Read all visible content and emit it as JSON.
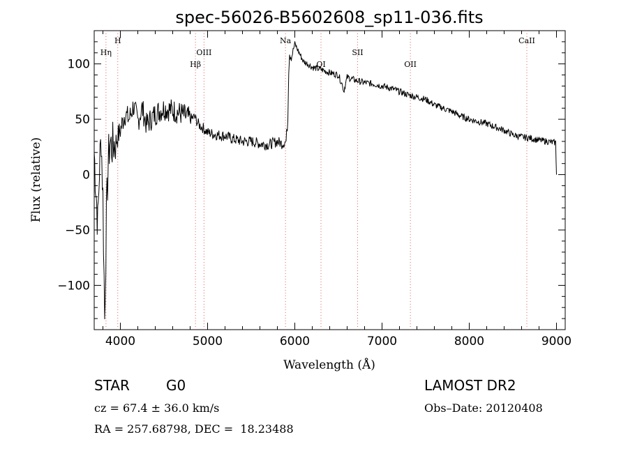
{
  "chart_data": {
    "type": "line",
    "title": "spec-56026-B5602608_sp11-036.fits",
    "xlabel": "Wavelength (Å)",
    "ylabel": "Flux (relative)",
    "xlim": [
      3700,
      9100
    ],
    "ylim": [
      -140,
      130
    ],
    "xticks": [
      4000,
      5000,
      6000,
      7000,
      8000,
      9000
    ],
    "yticks": [
      -100,
      -50,
      0,
      50,
      100
    ],
    "series": [
      {
        "name": "spectrum",
        "x": [
          3700,
          3740,
          3760,
          3780,
          3800,
          3820,
          3840,
          3860,
          3880,
          3900,
          3950,
          4000,
          4050,
          4100,
          4150,
          4200,
          4250,
          4300,
          4400,
          4500,
          4600,
          4700,
          4800,
          4850,
          4900,
          4950,
          5000,
          5100,
          5200,
          5300,
          5400,
          5500,
          5600,
          5700,
          5800,
          5850,
          5900,
          5920,
          5930,
          5940,
          5960,
          5980,
          6000,
          6050,
          6100,
          6150,
          6200,
          6300,
          6400,
          6500,
          6550,
          6560,
          6600,
          6700,
          6800,
          6900,
          7000,
          7100,
          7200,
          7300,
          7400,
          7500,
          7600,
          7700,
          7800,
          7900,
          8000,
          8100,
          8200,
          8300,
          8400,
          8500,
          8600,
          8700,
          8800,
          8900,
          8950,
          8990,
          9000
        ],
        "y": [
          20,
          -45,
          5,
          35,
          -20,
          -130,
          -40,
          10,
          30,
          25,
          30,
          40,
          55,
          50,
          62,
          48,
          60,
          45,
          55,
          60,
          58,
          55,
          50,
          52,
          45,
          42,
          38,
          36,
          35,
          32,
          30,
          30,
          28,
          27,
          30,
          28,
          30,
          50,
          95,
          110,
          105,
          112,
          118,
          110,
          102,
          100,
          97,
          95,
          92,
          90,
          80,
          75,
          88,
          85,
          83,
          82,
          80,
          78,
          75,
          72,
          70,
          68,
          63,
          60,
          57,
          53,
          50,
          48,
          46,
          43,
          40,
          36,
          34,
          33,
          31,
          30,
          29,
          29,
          0
        ]
      }
    ],
    "line_labels": [
      {
        "label": "H",
        "x": 3970,
        "pos": "top"
      },
      {
        "label": "Hη",
        "x": 3835,
        "pos": "mid"
      },
      {
        "label": "OIII",
        "x": 4959,
        "pos": "mid"
      },
      {
        "label": "Hβ",
        "x": 4861,
        "pos": "low"
      },
      {
        "label": "Na",
        "x": 5893,
        "pos": "top"
      },
      {
        "label": "OI",
        "x": 6300,
        "pos": "low"
      },
      {
        "label": "SII",
        "x": 6720,
        "pos": "mid"
      },
      {
        "label": "OII",
        "x": 7325,
        "pos": "low"
      },
      {
        "label": "CaII",
        "x": 8660,
        "pos": "top"
      }
    ]
  },
  "info": {
    "object_type": "STAR",
    "subclass": "G0",
    "survey": "LAMOST DR2",
    "redshift": "cz = 67.4 ± 36.0 km/s",
    "obs_date": "Obs–Date: 20120408",
    "coords": "RA = 257.68798, DEC =  18.23488"
  },
  "colors": {
    "line": "#000000",
    "marker": "#e06060",
    "axis": "#000000"
  }
}
